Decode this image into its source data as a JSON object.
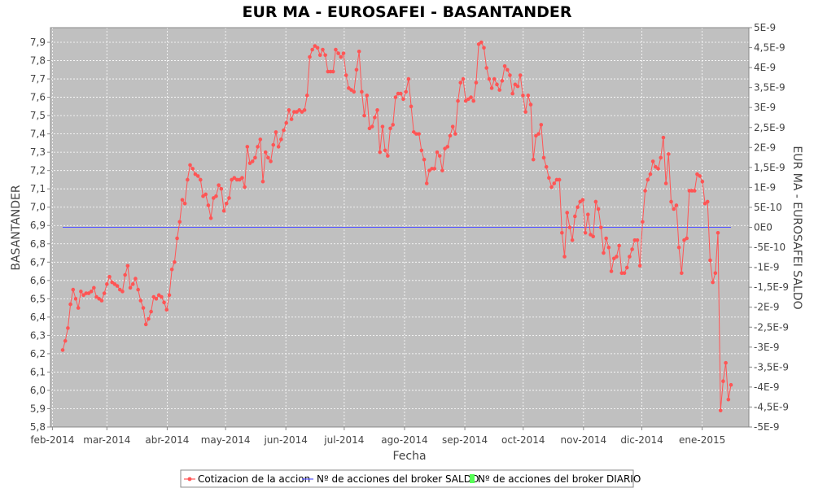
{
  "chart_data": {
    "type": "line",
    "title": "EUR MA - EUROSAFEI - BASANTANDER",
    "xlabel": "Fecha",
    "ylabel": "BASANTANDER",
    "y2label": "EUR MA - EUROSAFEI SALDO",
    "ylim": [
      5.8,
      7.98
    ],
    "y2lim": [
      -5e-09,
      5e-09
    ],
    "yticks": [
      "5,8",
      "5,9",
      "6,0",
      "6,1",
      "6,2",
      "6,3",
      "6,4",
      "6,5",
      "6,6",
      "6,7",
      "6,8",
      "6,9",
      "7,0",
      "7,1",
      "7,2",
      "7,3",
      "7,4",
      "7,5",
      "7,6",
      "7,7",
      "7,8",
      "7,9"
    ],
    "y2ticks": [
      "-5E-9",
      "-4,5E-9",
      "-4E-9",
      "-3,5E-9",
      "-3E-9",
      "-2,5E-9",
      "-2E-9",
      "-1,5E-9",
      "-1E-9",
      "-5E-10",
      "0E0",
      "5E-10",
      "1E-9",
      "1,5E-9",
      "2E-9",
      "2,5E-9",
      "3E-9",
      "3,5E-9",
      "4E-9",
      "4,5E-9",
      "5E-9"
    ],
    "xticks": [
      "feb-2014",
      "mar-2014",
      "abr-2014",
      "may-2014",
      "jun-2014",
      "jul-2014",
      "ago-2014",
      "sep-2014",
      "oct-2014",
      "nov-2014",
      "dic-2014",
      "ene-2015"
    ],
    "grid": true,
    "legend_position": "bottom",
    "colors": {
      "price": "#ff5555",
      "saldo": "#5555ff",
      "diario": "#55ff55",
      "plot_bg": "#c0c0c0"
    },
    "series": [
      {
        "name": "Cotizacion de la accion",
        "values": [
          6.22,
          6.27,
          6.34,
          6.47,
          6.55,
          6.5,
          6.45,
          6.54,
          6.52,
          6.53,
          6.53,
          6.54,
          6.56,
          6.51,
          6.5,
          6.49,
          6.53,
          6.58,
          6.62,
          6.59,
          6.58,
          6.57,
          6.55,
          6.54,
          6.63,
          6.68,
          6.56,
          6.58,
          6.61,
          6.55,
          6.49,
          6.45,
          6.36,
          6.39,
          6.43,
          6.51,
          6.5,
          6.52,
          6.51,
          6.48,
          6.44,
          6.52,
          6.66,
          6.7,
          6.83,
          6.92,
          7.04,
          7.02,
          7.15,
          7.23,
          7.21,
          7.18,
          7.17,
          7.15,
          7.06,
          7.07,
          7.01,
          6.94,
          7.05,
          7.06,
          7.12,
          7.1,
          6.98,
          7.02,
          7.05,
          7.15,
          7.16,
          7.15,
          7.15,
          7.16,
          7.11,
          7.33,
          7.24,
          7.25,
          7.27,
          7.33,
          7.37,
          7.14,
          7.3,
          7.27,
          7.25,
          7.34,
          7.41,
          7.33,
          7.37,
          7.42,
          7.46,
          7.53,
          7.48,
          7.52,
          7.52,
          7.53,
          7.52,
          7.53,
          7.61,
          7.82,
          7.86,
          7.88,
          7.87,
          7.83,
          7.86,
          7.83,
          7.74,
          7.74,
          7.74,
          7.86,
          7.84,
          7.82,
          7.84,
          7.72,
          7.65,
          7.64,
          7.63,
          7.75,
          7.85,
          7.63,
          7.5,
          7.61,
          7.43,
          7.44,
          7.49,
          7.53,
          7.3,
          7.44,
          7.31,
          7.28,
          7.43,
          7.45,
          7.6,
          7.62,
          7.62,
          7.59,
          7.63,
          7.7,
          7.55,
          7.41,
          7.4,
          7.4,
          7.31,
          7.26,
          7.13,
          7.2,
          7.21,
          7.21,
          7.3,
          7.28,
          7.2,
          7.32,
          7.33,
          7.39,
          7.44,
          7.4,
          7.58,
          7.68,
          7.7,
          7.58,
          7.59,
          7.6,
          7.58,
          7.68,
          7.89,
          7.9,
          7.87,
          7.76,
          7.7,
          7.65,
          7.7,
          7.67,
          7.64,
          7.69,
          7.77,
          7.75,
          7.72,
          7.62,
          7.67,
          7.66,
          7.72,
          7.61,
          7.52,
          7.61,
          7.56,
          7.26,
          7.39,
          7.4,
          7.45,
          7.27,
          7.22,
          7.16,
          7.11,
          7.13,
          7.15,
          7.15,
          6.86,
          6.73,
          6.97,
          6.89,
          6.82,
          6.95,
          7.0,
          7.03,
          7.04,
          6.86,
          6.96,
          6.85,
          6.84,
          7.03,
          6.99,
          6.89,
          6.75,
          6.83,
          6.78,
          6.65,
          6.72,
          6.73,
          6.79,
          6.64,
          6.64,
          6.67,
          6.73,
          6.77,
          6.82,
          6.82,
          6.68,
          6.92,
          7.09,
          7.15,
          7.18,
          7.25,
          7.22,
          7.21,
          7.27,
          7.38,
          7.13,
          7.29,
          7.03,
          6.99,
          7.01,
          6.78,
          6.64,
          6.82,
          6.83,
          7.09,
          7.09,
          7.09,
          7.18,
          7.17,
          7.14,
          7.02,
          7.03,
          6.71,
          6.59,
          6.64,
          6.86,
          5.89,
          6.05,
          6.15,
          5.95,
          6.03
        ]
      },
      {
        "name": "Nº de acciones del broker SALDO",
        "values": [
          0,
          0
        ]
      },
      {
        "name": "Nº de acciones del broker DIARIO",
        "values": []
      }
    ]
  }
}
